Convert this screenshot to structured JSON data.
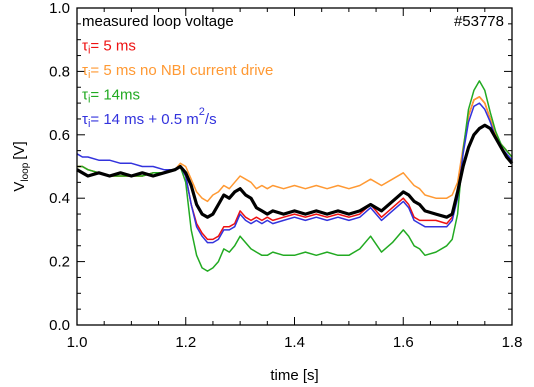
{
  "chart_data": {
    "type": "line",
    "xlabel": "time [s]",
    "ylabel": "V",
    "ylabel_sub": "loop",
    "ylabel_unit": "[V]",
    "xlim": [
      1.0,
      1.8
    ],
    "ylim": [
      0.0,
      1.0
    ],
    "xticks": [
      1.0,
      1.2,
      1.4,
      1.6,
      1.8
    ],
    "xtick_labels": [
      "1.0",
      "1.2",
      "1.4",
      "1.6",
      "1.8"
    ],
    "yticks": [
      0.0,
      0.2,
      0.4,
      0.6,
      0.8,
      1.0
    ],
    "ytick_labels": [
      "0.0",
      "0.2",
      "0.4",
      "0.6",
      "0.8",
      "1.0"
    ],
    "grid": false,
    "annotation": "#53778",
    "legend_position": "top-left",
    "series": [
      {
        "name": "measured loop voltage",
        "legend_parts": [
          "measured loop voltage"
        ],
        "color": "#000000",
        "x": [
          1.0,
          1.01,
          1.02,
          1.04,
          1.06,
          1.08,
          1.1,
          1.12,
          1.14,
          1.16,
          1.18,
          1.19,
          1.2,
          1.21,
          1.22,
          1.23,
          1.24,
          1.25,
          1.26,
          1.27,
          1.28,
          1.29,
          1.3,
          1.31,
          1.32,
          1.33,
          1.34,
          1.35,
          1.36,
          1.38,
          1.4,
          1.42,
          1.44,
          1.46,
          1.48,
          1.5,
          1.52,
          1.54,
          1.56,
          1.58,
          1.6,
          1.61,
          1.62,
          1.63,
          1.64,
          1.66,
          1.68,
          1.69,
          1.7,
          1.71,
          1.72,
          1.73,
          1.74,
          1.75,
          1.76,
          1.77,
          1.78,
          1.79,
          1.8
        ],
        "y": [
          0.49,
          0.48,
          0.47,
          0.48,
          0.47,
          0.48,
          0.47,
          0.48,
          0.47,
          0.48,
          0.49,
          0.5,
          0.48,
          0.44,
          0.38,
          0.35,
          0.34,
          0.35,
          0.38,
          0.41,
          0.4,
          0.42,
          0.43,
          0.41,
          0.4,
          0.37,
          0.36,
          0.35,
          0.36,
          0.35,
          0.36,
          0.35,
          0.36,
          0.35,
          0.36,
          0.35,
          0.36,
          0.38,
          0.36,
          0.39,
          0.42,
          0.41,
          0.39,
          0.38,
          0.36,
          0.35,
          0.34,
          0.35,
          0.42,
          0.5,
          0.56,
          0.6,
          0.62,
          0.63,
          0.62,
          0.59,
          0.56,
          0.53,
          0.51
        ]
      },
      {
        "name": "τi= 5 ms",
        "legend_parts": [
          "τ",
          "i",
          "= 5 ms"
        ],
        "color": "#ee1111",
        "x": [
          1.0,
          1.01,
          1.02,
          1.04,
          1.06,
          1.08,
          1.1,
          1.12,
          1.14,
          1.16,
          1.18,
          1.19,
          1.2,
          1.21,
          1.22,
          1.23,
          1.24,
          1.25,
          1.26,
          1.27,
          1.28,
          1.29,
          1.3,
          1.31,
          1.32,
          1.33,
          1.34,
          1.35,
          1.36,
          1.38,
          1.4,
          1.42,
          1.44,
          1.46,
          1.48,
          1.5,
          1.52,
          1.54,
          1.56,
          1.58,
          1.6,
          1.61,
          1.62,
          1.63,
          1.64,
          1.66,
          1.68,
          1.69,
          1.7,
          1.71,
          1.72,
          1.73,
          1.74,
          1.75,
          1.76,
          1.77,
          1.78,
          1.79,
          1.8
        ],
        "y": [
          0.5,
          0.5,
          0.49,
          0.48,
          0.47,
          0.47,
          0.47,
          0.47,
          0.48,
          0.48,
          0.49,
          0.5,
          0.47,
          0.38,
          0.32,
          0.29,
          0.27,
          0.27,
          0.28,
          0.31,
          0.31,
          0.32,
          0.36,
          0.34,
          0.33,
          0.34,
          0.33,
          0.34,
          0.33,
          0.34,
          0.35,
          0.34,
          0.35,
          0.34,
          0.35,
          0.34,
          0.35,
          0.38,
          0.34,
          0.37,
          0.4,
          0.38,
          0.34,
          0.33,
          0.33,
          0.33,
          0.32,
          0.34,
          0.41,
          0.55,
          0.66,
          0.71,
          0.72,
          0.7,
          0.65,
          0.6,
          0.57,
          0.55,
          0.53
        ]
      },
      {
        "name": "τi= 5 ms no NBI current drive",
        "legend_parts": [
          "τ",
          "i",
          "= 5 ms no NBI current drive"
        ],
        "color": "#ff9933",
        "x": [
          1.0,
          1.01,
          1.02,
          1.04,
          1.06,
          1.08,
          1.1,
          1.12,
          1.14,
          1.16,
          1.18,
          1.19,
          1.2,
          1.21,
          1.22,
          1.23,
          1.24,
          1.25,
          1.26,
          1.27,
          1.28,
          1.29,
          1.3,
          1.31,
          1.32,
          1.33,
          1.34,
          1.35,
          1.36,
          1.38,
          1.4,
          1.42,
          1.44,
          1.46,
          1.48,
          1.5,
          1.52,
          1.54,
          1.56,
          1.58,
          1.6,
          1.61,
          1.62,
          1.63,
          1.64,
          1.66,
          1.68,
          1.69,
          1.7,
          1.71,
          1.72,
          1.73,
          1.74,
          1.75,
          1.76,
          1.77,
          1.78,
          1.79,
          1.8
        ],
        "y": [
          0.5,
          0.5,
          0.49,
          0.48,
          0.47,
          0.47,
          0.47,
          0.47,
          0.48,
          0.48,
          0.49,
          0.51,
          0.5,
          0.46,
          0.42,
          0.4,
          0.39,
          0.41,
          0.42,
          0.44,
          0.43,
          0.45,
          0.47,
          0.46,
          0.45,
          0.43,
          0.44,
          0.43,
          0.44,
          0.43,
          0.44,
          0.43,
          0.44,
          0.43,
          0.44,
          0.43,
          0.44,
          0.46,
          0.44,
          0.46,
          0.48,
          0.46,
          0.44,
          0.43,
          0.41,
          0.4,
          0.4,
          0.41,
          0.45,
          0.56,
          0.66,
          0.71,
          0.72,
          0.7,
          0.65,
          0.6,
          0.57,
          0.55,
          0.53
        ]
      },
      {
        "name": "τi= 14ms",
        "legend_parts": [
          "τ",
          "i",
          "= 14ms"
        ],
        "color": "#22aa22",
        "x": [
          1.0,
          1.01,
          1.02,
          1.04,
          1.06,
          1.08,
          1.1,
          1.12,
          1.14,
          1.16,
          1.18,
          1.19,
          1.2,
          1.21,
          1.22,
          1.23,
          1.24,
          1.25,
          1.26,
          1.27,
          1.28,
          1.29,
          1.3,
          1.31,
          1.32,
          1.33,
          1.34,
          1.35,
          1.36,
          1.38,
          1.4,
          1.42,
          1.44,
          1.46,
          1.48,
          1.5,
          1.52,
          1.54,
          1.56,
          1.58,
          1.6,
          1.61,
          1.62,
          1.63,
          1.64,
          1.66,
          1.68,
          1.69,
          1.7,
          1.71,
          1.72,
          1.73,
          1.74,
          1.75,
          1.76,
          1.77,
          1.78,
          1.79,
          1.8
        ],
        "y": [
          0.5,
          0.5,
          0.49,
          0.48,
          0.47,
          0.47,
          0.47,
          0.47,
          0.48,
          0.48,
          0.49,
          0.5,
          0.45,
          0.3,
          0.22,
          0.18,
          0.17,
          0.18,
          0.2,
          0.24,
          0.23,
          0.25,
          0.28,
          0.26,
          0.24,
          0.23,
          0.22,
          0.22,
          0.23,
          0.22,
          0.22,
          0.23,
          0.22,
          0.23,
          0.22,
          0.22,
          0.24,
          0.28,
          0.23,
          0.26,
          0.3,
          0.28,
          0.25,
          0.24,
          0.22,
          0.23,
          0.25,
          0.27,
          0.35,
          0.55,
          0.68,
          0.74,
          0.77,
          0.74,
          0.67,
          0.61,
          0.57,
          0.55,
          0.53
        ]
      },
      {
        "name": "τi= 14 ms + 0.5 m²/s",
        "legend_parts": [
          "τ",
          "i",
          "= 14 ms + 0.5 m",
          "2",
          "/s"
        ],
        "color": "#3333dd",
        "x": [
          1.0,
          1.01,
          1.02,
          1.04,
          1.06,
          1.08,
          1.1,
          1.12,
          1.14,
          1.16,
          1.18,
          1.19,
          1.2,
          1.21,
          1.22,
          1.23,
          1.24,
          1.25,
          1.26,
          1.27,
          1.28,
          1.29,
          1.3,
          1.31,
          1.32,
          1.33,
          1.34,
          1.35,
          1.36,
          1.38,
          1.4,
          1.42,
          1.44,
          1.46,
          1.48,
          1.5,
          1.52,
          1.54,
          1.56,
          1.58,
          1.6,
          1.61,
          1.62,
          1.63,
          1.64,
          1.66,
          1.68,
          1.69,
          1.7,
          1.71,
          1.72,
          1.73,
          1.74,
          1.75,
          1.76,
          1.77,
          1.78,
          1.79,
          1.8
        ],
        "y": [
          0.54,
          0.53,
          0.53,
          0.52,
          0.52,
          0.51,
          0.51,
          0.5,
          0.5,
          0.49,
          0.49,
          0.5,
          0.47,
          0.38,
          0.31,
          0.28,
          0.26,
          0.26,
          0.27,
          0.3,
          0.3,
          0.31,
          0.35,
          0.33,
          0.32,
          0.33,
          0.32,
          0.33,
          0.32,
          0.33,
          0.34,
          0.33,
          0.34,
          0.33,
          0.34,
          0.33,
          0.34,
          0.37,
          0.33,
          0.36,
          0.39,
          0.37,
          0.33,
          0.32,
          0.31,
          0.31,
          0.31,
          0.33,
          0.4,
          0.54,
          0.64,
          0.69,
          0.7,
          0.68,
          0.64,
          0.59,
          0.56,
          0.54,
          0.52
        ]
      }
    ]
  }
}
